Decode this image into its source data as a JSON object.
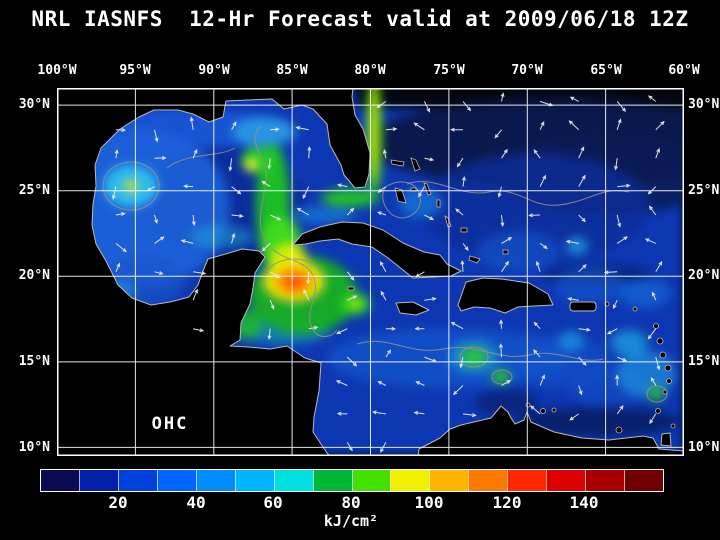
{
  "title": "NRL IASNFS  12-Hr Forecast valid at 2009/06/18 12Z",
  "map": {
    "overlay_label": "OHC",
    "lon_ticks": [
      "100°W",
      "95°W",
      "90°W",
      "85°W",
      "80°W",
      "75°W",
      "70°W",
      "65°W",
      "60°W"
    ],
    "lat_ticks": [
      "30°N",
      "25°N",
      "20°N",
      "15°N",
      "10°N"
    ]
  },
  "colorbar": {
    "unit_label": "kJ/cm²",
    "tick_labels": [
      "20",
      "40",
      "60",
      "80",
      "100",
      "120",
      "140"
    ],
    "min": 0,
    "max": 160,
    "segment_colors": [
      "#0a0a50",
      "#0020a8",
      "#0041dc",
      "#0066ff",
      "#008cff",
      "#00b4ff",
      "#00e0e0",
      "#00b837",
      "#44e000",
      "#f0f000",
      "#ffb400",
      "#ff7800",
      "#ff2800",
      "#dc0000",
      "#a80000",
      "#700000"
    ]
  },
  "colors": {
    "background": "#000000",
    "text": "#ffffff",
    "grid": "#ffffff",
    "coastline": "#b9b9b9",
    "contour": "#909090",
    "land": "#000000"
  },
  "chart_data": {
    "type": "heatmap",
    "title": "NRL IASNFS 12-Hr Forecast valid at 2009/06/18 12Z",
    "variable": "Ocean Heat Content (OHC)",
    "units": "kJ/cm²",
    "x_ticks_lon_w": [
      100,
      95,
      90,
      85,
      80,
      75,
      70,
      65,
      60
    ],
    "y_ticks_lat_n": [
      30,
      25,
      20,
      15,
      10
    ],
    "colorbar_ticks": [
      20,
      40,
      60,
      80,
      100,
      120,
      140
    ],
    "colorbar_range": [
      0,
      160
    ],
    "overlays": [
      "white surface-current vector arrows",
      "gray contour lines",
      "black land mask with light-gray coastlines",
      "white 5-degree lat/lon grid"
    ],
    "estimated_features": [
      {
        "name": "NW Caribbean warm core (max)",
        "lon_w": 85,
        "lat_n": 19.7,
        "ohc_kj_cm2": 115
      },
      {
        "name": "Loop Current tongue",
        "lon_w": 86,
        "lat_n": 24,
        "ohc_kj_cm2": 80
      },
      {
        "name": "Yucatan Channel",
        "lon_w": 85.5,
        "lat_n": 21.5,
        "ohc_kj_cm2": 90
      },
      {
        "name": "Florida Current band",
        "lon_w": 79.8,
        "lat_n": 27.5,
        "ohc_kj_cm2": 85
      },
      {
        "name": "Western Gulf warm eddy",
        "lon_w": 95.3,
        "lat_n": 25.3,
        "ohc_kj_cm2": 65
      },
      {
        "name": "Northeast subtropical Atlantic",
        "lon_w": 68,
        "lat_n": 29.5,
        "ohc_kj_cm2": 8
      },
      {
        "name": "Eastern Caribbean background",
        "lon_w": 68,
        "lat_n": 15,
        "ohc_kj_cm2": 40
      },
      {
        "name": "Venezuela coastal upwelling band",
        "lon_w": 65,
        "lat_n": 11.5,
        "ohc_kj_cm2": 15
      }
    ]
  }
}
